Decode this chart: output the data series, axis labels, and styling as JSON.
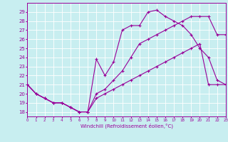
{
  "background_color": "#c8eef0",
  "line_color": "#990099",
  "xlim": [
    0,
    23
  ],
  "ylim": [
    17.5,
    30
  ],
  "xlabel": "Windchill (Refroidissement éolien,°C)",
  "line1_x": [
    0,
    1,
    2,
    3,
    4,
    5,
    6,
    7,
    8,
    9,
    10,
    11,
    12,
    13,
    14,
    15,
    16,
    17,
    18,
    19,
    20,
    21,
    22,
    23
  ],
  "line1_y": [
    21.0,
    20.0,
    19.5,
    19.0,
    19.0,
    18.5,
    18.0,
    18.0,
    19.5,
    20.0,
    20.5,
    21.0,
    21.5,
    22.0,
    22.5,
    23.0,
    23.5,
    24.0,
    24.5,
    25.0,
    25.5,
    21.0,
    21.0,
    21.0
  ],
  "line2_x": [
    0,
    1,
    2,
    3,
    4,
    5,
    6,
    7,
    8,
    9,
    10,
    11,
    12,
    13,
    14,
    15,
    16,
    17,
    18,
    19,
    20,
    21,
    22,
    23
  ],
  "line2_y": [
    21.0,
    20.0,
    19.5,
    19.0,
    19.0,
    18.5,
    18.0,
    18.0,
    23.8,
    22.0,
    23.5,
    27.0,
    27.5,
    27.5,
    29.0,
    29.2,
    28.5,
    28.0,
    27.5,
    26.5,
    25.0,
    24.0,
    21.5,
    21.0
  ],
  "line3_x": [
    0,
    1,
    2,
    3,
    4,
    5,
    6,
    7,
    8,
    9,
    10,
    11,
    12,
    13,
    14,
    15,
    16,
    17,
    18,
    19,
    20,
    21,
    22,
    23
  ],
  "line3_y": [
    21.0,
    20.0,
    19.5,
    19.0,
    19.0,
    18.5,
    18.0,
    18.0,
    20.0,
    20.5,
    21.5,
    22.5,
    24.0,
    25.5,
    26.0,
    26.5,
    27.0,
    27.5,
    28.0,
    28.5,
    28.5,
    28.5,
    26.5,
    26.5
  ]
}
